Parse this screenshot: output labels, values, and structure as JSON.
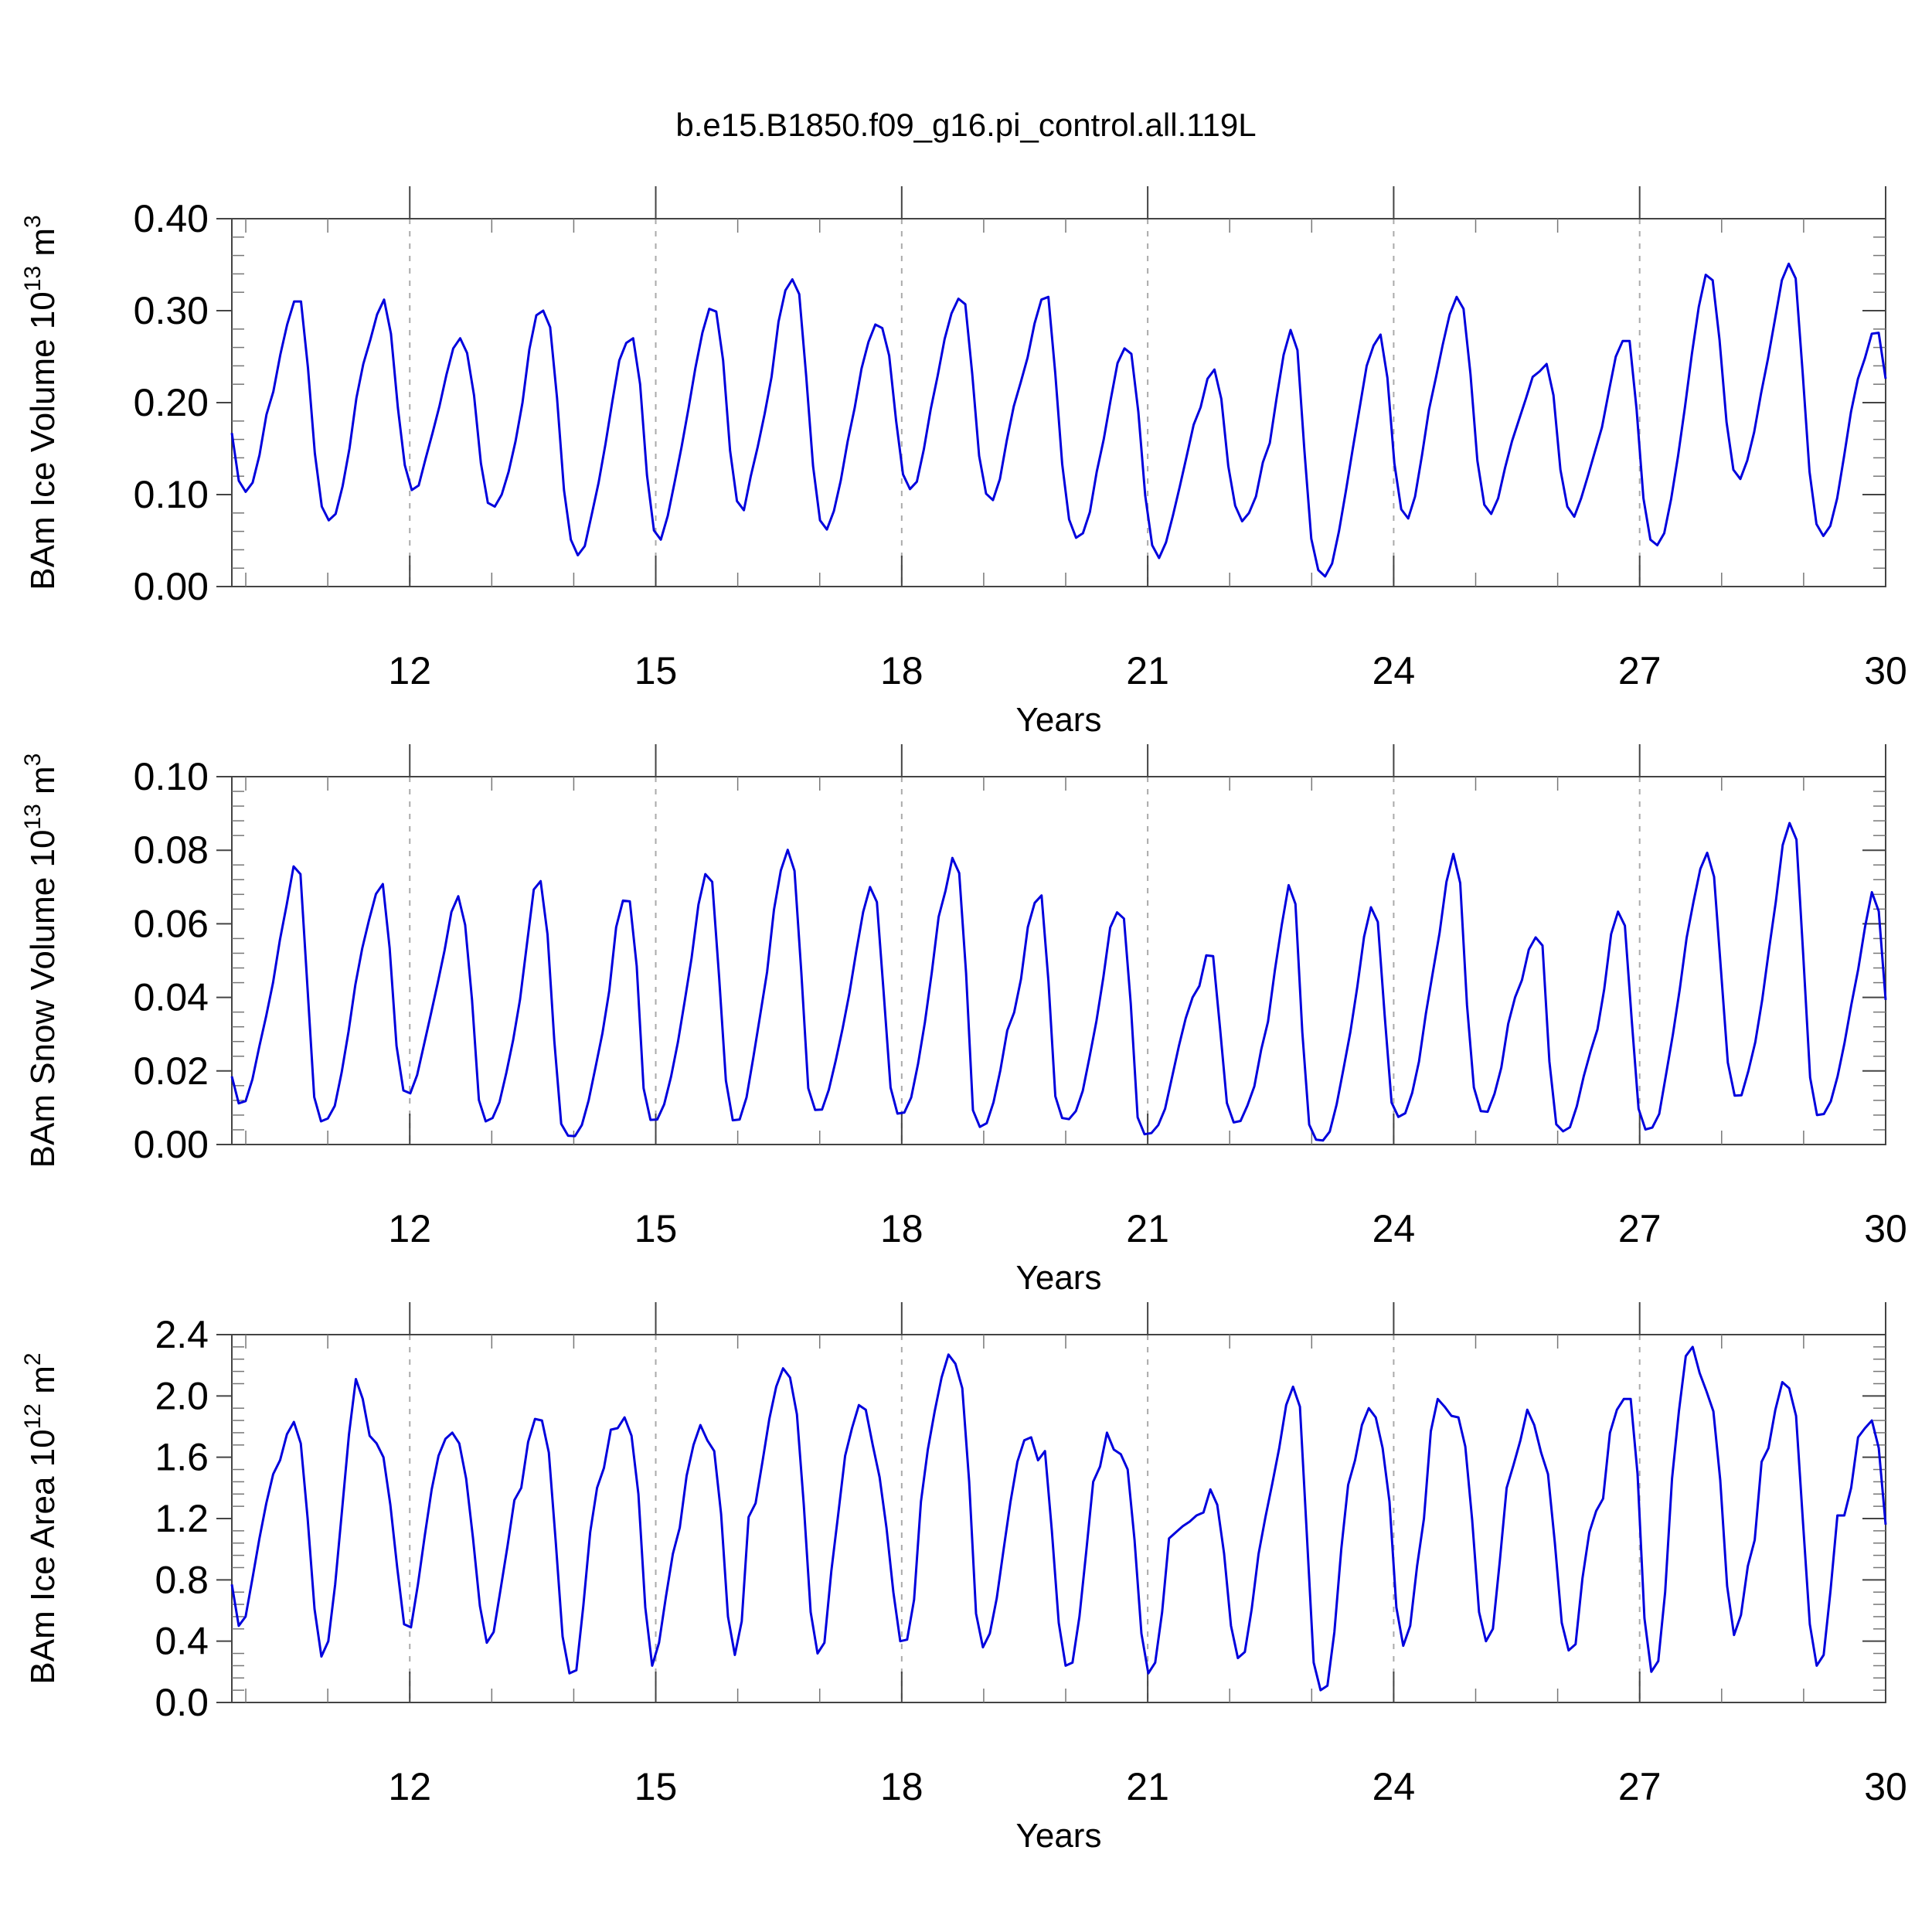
{
  "title": "b.e15.B1850.f09_g16.pi_control.all.119L",
  "colors": {
    "series": "#0000dd",
    "axis": "#444444",
    "grid": "#aaaaaa"
  },
  "chart_data": [
    {
      "type": "line",
      "title": "",
      "xlabel": "Years",
      "ylabel": "BAm Ice Volume 10",
      "ylabel_exp": "13",
      "ylabel_unit": "m",
      "ylabel_unit_exp": "3",
      "xlim": [
        9.83,
        30
      ],
      "ylim": [
        0,
        0.4
      ],
      "yticks": [
        0,
        0.1,
        0.2,
        0.3,
        0.4
      ],
      "ytick_labels": [
        "0.00",
        "0.10",
        "0.20",
        "0.30",
        "0.40"
      ],
      "xticks": [
        12,
        15,
        18,
        21,
        24,
        27,
        30
      ],
      "xtick_labels": [
        "12",
        "15",
        "18",
        "21",
        "24",
        "27",
        "30"
      ],
      "grid": "vertical dashed at major x ticks",
      "series": [
        {
          "values": [
            0.167,
            0.115,
            0.103,
            0.113,
            0.143,
            0.187,
            0.212,
            0.252,
            0.285,
            0.31,
            0.31,
            0.238,
            0.145,
            0.087,
            0.072,
            0.079,
            0.109,
            0.15,
            0.205,
            0.242,
            0.268,
            0.296,
            0.312,
            0.275,
            0.194,
            0.132,
            0.105,
            0.11,
            0.139,
            0.167,
            0.196,
            0.23,
            0.259,
            0.27,
            0.254,
            0.208,
            0.134,
            0.091,
            0.087,
            0.1,
            0.125,
            0.158,
            0.2,
            0.258,
            0.295,
            0.3,
            0.282,
            0.205,
            0.105,
            0.051,
            0.034,
            0.044,
            0.078,
            0.113,
            0.155,
            0.202,
            0.246,
            0.265,
            0.27,
            0.22,
            0.121,
            0.061,
            0.051,
            0.077,
            0.114,
            0.152,
            0.194,
            0.238,
            0.276,
            0.302,
            0.299,
            0.246,
            0.148,
            0.093,
            0.083,
            0.12,
            0.152,
            0.188,
            0.228,
            0.288,
            0.322,
            0.334,
            0.318,
            0.229,
            0.131,
            0.072,
            0.062,
            0.082,
            0.115,
            0.158,
            0.194,
            0.237,
            0.266,
            0.285,
            0.281,
            0.251,
            0.18,
            0.122,
            0.106,
            0.114,
            0.149,
            0.193,
            0.229,
            0.269,
            0.297,
            0.313,
            0.307,
            0.231,
            0.142,
            0.101,
            0.094,
            0.117,
            0.159,
            0.196,
            0.222,
            0.249,
            0.286,
            0.312,
            0.315,
            0.232,
            0.133,
            0.073,
            0.053,
            0.058,
            0.081,
            0.125,
            0.16,
            0.203,
            0.243,
            0.259,
            0.253,
            0.19,
            0.099,
            0.045,
            0.031,
            0.048,
            0.077,
            0.109,
            0.142,
            0.176,
            0.195,
            0.226,
            0.236,
            0.204,
            0.131,
            0.088,
            0.071,
            0.08,
            0.098,
            0.135,
            0.156,
            0.206,
            0.252,
            0.279,
            0.257,
            0.148,
            0.052,
            0.018,
            0.011,
            0.025,
            0.06,
            0.104,
            0.15,
            0.195,
            0.24,
            0.262,
            0.274,
            0.227,
            0.134,
            0.084,
            0.074,
            0.098,
            0.143,
            0.192,
            0.227,
            0.263,
            0.296,
            0.315,
            0.302,
            0.231,
            0.137,
            0.089,
            0.079,
            0.096,
            0.129,
            0.158,
            0.181,
            0.204,
            0.228,
            0.234,
            0.242,
            0.208,
            0.127,
            0.087,
            0.076,
            0.096,
            0.121,
            0.147,
            0.173,
            0.212,
            0.25,
            0.267,
            0.267,
            0.193,
            0.096,
            0.051,
            0.045,
            0.058,
            0.095,
            0.142,
            0.195,
            0.253,
            0.304,
            0.339,
            0.333,
            0.268,
            0.179,
            0.127,
            0.117,
            0.137,
            0.168,
            0.21,
            0.248,
            0.29,
            0.333,
            0.351,
            0.335,
            0.233,
            0.125,
            0.068,
            0.055,
            0.066,
            0.096,
            0.142,
            0.19,
            0.226,
            0.248,
            0.275,
            0.276,
            0.226
          ]
        }
      ]
    },
    {
      "type": "line",
      "title": "",
      "xlabel": "Years",
      "ylabel": "BAm Snow Volume 10",
      "ylabel_exp": "13",
      "ylabel_unit": "m",
      "ylabel_unit_exp": "3",
      "xlim": [
        9.83,
        30
      ],
      "ylim": [
        0,
        0.1
      ],
      "yticks": [
        0,
        0.02,
        0.04,
        0.06,
        0.08,
        0.1
      ],
      "ytick_labels": [
        "0.00",
        "0.02",
        "0.04",
        "0.06",
        "0.08",
        "0.10"
      ],
      "xticks": [
        12,
        15,
        18,
        21,
        24,
        27,
        30
      ],
      "xtick_labels": [
        "12",
        "15",
        "18",
        "21",
        "24",
        "27",
        "30"
      ],
      "grid": "vertical dashed at major x ticks",
      "series": [
        {
          "values": [
            0.0185,
            0.0112,
            0.0118,
            0.0177,
            0.0266,
            0.0349,
            0.044,
            0.0556,
            0.0652,
            0.0756,
            0.0735,
            0.0433,
            0.0129,
            0.0063,
            0.0071,
            0.0105,
            0.0196,
            0.0307,
            0.0434,
            0.0533,
            0.0611,
            0.0681,
            0.0708,
            0.0534,
            0.0268,
            0.0147,
            0.0139,
            0.0189,
            0.0271,
            0.0354,
            0.0439,
            0.0528,
            0.0632,
            0.0675,
            0.0597,
            0.0393,
            0.0121,
            0.0063,
            0.0072,
            0.0115,
            0.0195,
            0.0285,
            0.0394,
            0.0544,
            0.0693,
            0.0716,
            0.0571,
            0.0281,
            0.0056,
            0.0024,
            0.0023,
            0.0053,
            0.012,
            0.021,
            0.0302,
            0.0418,
            0.0591,
            0.0663,
            0.0661,
            0.0485,
            0.0153,
            0.0067,
            0.0068,
            0.0109,
            0.0184,
            0.0278,
            0.0391,
            0.0507,
            0.0652,
            0.0735,
            0.0714,
            0.0456,
            0.0174,
            0.0066,
            0.0068,
            0.0128,
            0.0238,
            0.0352,
            0.0469,
            0.0638,
            0.0745,
            0.0801,
            0.0744,
            0.0465,
            0.0153,
            0.0094,
            0.0095,
            0.0149,
            0.0228,
            0.0315,
            0.0412,
            0.0525,
            0.0632,
            0.07,
            0.0659,
            0.0409,
            0.0155,
            0.0084,
            0.0087,
            0.0128,
            0.022,
            0.0332,
            0.0467,
            0.0619,
            0.069,
            0.0779,
            0.0738,
            0.0466,
            0.0093,
            0.0048,
            0.0058,
            0.0115,
            0.0202,
            0.031,
            0.0359,
            0.045,
            0.0591,
            0.0657,
            0.0677,
            0.0444,
            0.0131,
            0.0072,
            0.0069,
            0.0091,
            0.0146,
            0.0239,
            0.0336,
            0.0454,
            0.059,
            0.0631,
            0.0614,
            0.0383,
            0.0074,
            0.0028,
            0.0031,
            0.0053,
            0.0097,
            0.0182,
            0.0267,
            0.0343,
            0.04,
            0.0431,
            0.0514,
            0.0512,
            0.0317,
            0.0113,
            0.006,
            0.0064,
            0.0106,
            0.0158,
            0.0258,
            0.0334,
            0.0474,
            0.0597,
            0.0705,
            0.0654,
            0.0305,
            0.0054,
            0.0013,
            0.0011,
            0.0035,
            0.0109,
            0.0206,
            0.0306,
            0.0428,
            0.0565,
            0.0645,
            0.0605,
            0.035,
            0.0114,
            0.0075,
            0.0085,
            0.014,
            0.0226,
            0.0356,
            0.0466,
            0.0575,
            0.0714,
            0.079,
            0.0711,
            0.0379,
            0.0155,
            0.0091,
            0.0089,
            0.0138,
            0.0209,
            0.0328,
            0.04,
            0.0447,
            0.053,
            0.0563,
            0.0541,
            0.0226,
            0.0055,
            0.0036,
            0.0047,
            0.0104,
            0.0185,
            0.0253,
            0.0313,
            0.0423,
            0.0572,
            0.0633,
            0.0595,
            0.0337,
            0.0097,
            0.0041,
            0.0046,
            0.0083,
            0.0191,
            0.0299,
            0.0422,
            0.0562,
            0.066,
            0.0749,
            0.0793,
            0.0728,
            0.0475,
            0.0223,
            0.0133,
            0.0134,
            0.02,
            0.0278,
            0.0392,
            0.0529,
            0.066,
            0.0814,
            0.0874,
            0.0829,
            0.0514,
            0.0182,
            0.008,
            0.0083,
            0.0117,
            0.0185,
            0.0275,
            0.038,
            0.0476,
            0.0592,
            0.0686,
            0.0634,
            0.0393
          ]
        }
      ]
    },
    {
      "type": "line",
      "title": "",
      "xlabel": "Years",
      "ylabel": "BAm Ice Area 10",
      "ylabel_exp": "12",
      "ylabel_unit": "m",
      "ylabel_unit_exp": "2",
      "xlim": [
        9.83,
        30
      ],
      "ylim": [
        0,
        2.4
      ],
      "yticks": [
        0,
        0.4,
        0.8,
        1.2,
        1.6,
        2.0,
        2.4
      ],
      "ytick_labels": [
        "0.0",
        "0.4",
        "0.8",
        "1.2",
        "1.6",
        "2.0",
        "2.4"
      ],
      "xticks": [
        12,
        15,
        18,
        21,
        24,
        27,
        30
      ],
      "xtick_labels": [
        "12",
        "15",
        "18",
        "21",
        "24",
        "27",
        "30"
      ],
      "grid": "vertical dashed at major x ticks",
      "series": [
        {
          "values": [
            0.77,
            0.5,
            0.56,
            0.81,
            1.07,
            1.3,
            1.49,
            1.58,
            1.75,
            1.83,
            1.69,
            1.2,
            0.61,
            0.3,
            0.4,
            0.77,
            1.26,
            1.75,
            2.11,
            1.98,
            1.74,
            1.69,
            1.6,
            1.29,
            0.88,
            0.51,
            0.49,
            0.77,
            1.09,
            1.39,
            1.61,
            1.72,
            1.76,
            1.69,
            1.46,
            1.07,
            0.63,
            0.39,
            0.46,
            0.74,
            1.02,
            1.32,
            1.4,
            1.7,
            1.85,
            1.84,
            1.63,
            1.05,
            0.43,
            0.19,
            0.21,
            0.63,
            1.11,
            1.4,
            1.53,
            1.78,
            1.79,
            1.86,
            1.74,
            1.36,
            0.62,
            0.24,
            0.39,
            0.69,
            0.97,
            1.14,
            1.48,
            1.68,
            1.81,
            1.71,
            1.64,
            1.23,
            0.56,
            0.31,
            0.53,
            1.21,
            1.3,
            1.57,
            1.85,
            2.06,
            2.18,
            2.12,
            1.88,
            1.29,
            0.59,
            0.32,
            0.39,
            0.86,
            1.23,
            1.61,
            1.79,
            1.94,
            1.91,
            1.68,
            1.47,
            1.14,
            0.72,
            0.4,
            0.41,
            0.67,
            1.31,
            1.65,
            1.9,
            2.12,
            2.27,
            2.21,
            2.05,
            1.44,
            0.58,
            0.36,
            0.45,
            0.68,
            1.0,
            1.31,
            1.57,
            1.71,
            1.73,
            1.58,
            1.64,
            1.12,
            0.52,
            0.24,
            0.26,
            0.56,
            0.99,
            1.44,
            1.54,
            1.76,
            1.65,
            1.62,
            1.52,
            1.06,
            0.45,
            0.19,
            0.26,
            0.59,
            1.07,
            1.11,
            1.15,
            1.18,
            1.22,
            1.24,
            1.39,
            1.29,
            0.97,
            0.5,
            0.29,
            0.33,
            0.61,
            0.97,
            1.21,
            1.43,
            1.66,
            1.94,
            2.06,
            1.93,
            1.1,
            0.26,
            0.08,
            0.11,
            0.46,
            1.0,
            1.42,
            1.58,
            1.81,
            1.92,
            1.86,
            1.66,
            1.31,
            0.62,
            0.37,
            0.5,
            0.89,
            1.2,
            1.77,
            1.98,
            1.93,
            1.87,
            1.86,
            1.67,
            1.19,
            0.59,
            0.4,
            0.48,
            0.92,
            1.4,
            1.55,
            1.71,
            1.91,
            1.81,
            1.63,
            1.49,
            1.04,
            0.52,
            0.34,
            0.38,
            0.81,
            1.11,
            1.25,
            1.33,
            1.76,
            1.91,
            1.98,
            1.98,
            1.49,
            0.55,
            0.2,
            0.27,
            0.72,
            1.46,
            1.9,
            2.26,
            2.32,
            2.15,
            2.03,
            1.9,
            1.45,
            0.76,
            0.44,
            0.57,
            0.89,
            1.06,
            1.57,
            1.66,
            1.91,
            2.09,
            2.05,
            1.87,
            1.18,
            0.51,
            0.24,
            0.31,
            0.73,
            1.22,
            1.22,
            1.4,
            1.73,
            1.79,
            1.84,
            1.66,
            1.16
          ]
        }
      ]
    }
  ]
}
